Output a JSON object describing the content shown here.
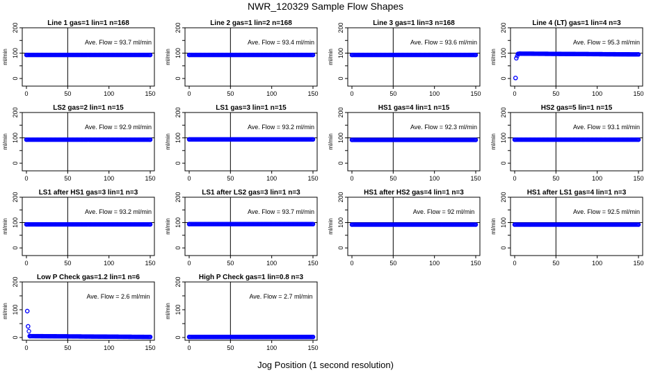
{
  "figure": {
    "title": "NWR_120329  Sample Flow Shapes",
    "xlabel": "Jog Position (1 second resolution)",
    "ylabel": "ml/min",
    "avg_prefix": "Ave. Flow = ",
    "avg_unit": "ml/min",
    "point_color": "#0000ff"
  },
  "chart_data": [
    {
      "type": "scatter",
      "title": "Line 1 gas=1 lin=1 n=168",
      "avg": "93.7",
      "xlim": [
        0,
        150
      ],
      "ylim": [
        -30,
        200
      ],
      "xticks": [
        0,
        50,
        100,
        150
      ],
      "yticks": [
        0,
        100,
        200
      ],
      "ytick_minor": [
        50,
        150
      ],
      "vline": 50,
      "hline": 100,
      "x": [
        0,
        150
      ],
      "y": [
        93,
        93
      ]
    },
    {
      "type": "scatter",
      "title": "Line 2 gas=1 lin=2 n=168",
      "avg": "93.4",
      "xlim": [
        0,
        150
      ],
      "ylim": [
        -30,
        200
      ],
      "xticks": [
        0,
        50,
        100,
        150
      ],
      "yticks": [
        0,
        100,
        200
      ],
      "ytick_minor": [
        50,
        150
      ],
      "vline": 50,
      "hline": 100,
      "x": [
        0,
        150
      ],
      "y": [
        93,
        93
      ]
    },
    {
      "type": "scatter",
      "title": "Line 3 gas=1 lin=3 n=168",
      "avg": "93.6",
      "xlim": [
        0,
        150
      ],
      "ylim": [
        -30,
        200
      ],
      "xticks": [
        0,
        50,
        100,
        150
      ],
      "yticks": [
        0,
        100,
        200
      ],
      "ytick_minor": [
        50,
        150
      ],
      "vline": 50,
      "hline": 100,
      "x": [
        0,
        150
      ],
      "y": [
        93,
        93
      ]
    },
    {
      "type": "scatter",
      "title": "Line 4 (LT) gas=1 lin=4 n=3",
      "avg": "95.3",
      "xlim": [
        0,
        150
      ],
      "ylim": [
        -30,
        200
      ],
      "xticks": [
        0,
        50,
        100,
        150
      ],
      "yticks": [
        0,
        100,
        200
      ],
      "ytick_minor": [
        50,
        150
      ],
      "vline": 50,
      "hline": 100,
      "x": [
        1,
        2,
        4,
        6,
        150
      ],
      "y": [
        2,
        80,
        97,
        98,
        95
      ]
    },
    {
      "type": "scatter",
      "title": "LS2 gas=2 lin=1 n=15",
      "avg": "92.9",
      "xlim": [
        0,
        150
      ],
      "ylim": [
        -30,
        200
      ],
      "xticks": [
        0,
        50,
        100,
        150
      ],
      "yticks": [
        0,
        100,
        200
      ],
      "ytick_minor": [
        50,
        150
      ],
      "vline": 50,
      "hline": 100,
      "x": [
        0,
        150
      ],
      "y": [
        93,
        93
      ]
    },
    {
      "type": "scatter",
      "title": "LS1 gas=3 lin=1 n=15",
      "avg": "93.2",
      "xlim": [
        0,
        150
      ],
      "ylim": [
        -30,
        200
      ],
      "xticks": [
        0,
        50,
        100,
        150
      ],
      "yticks": [
        0,
        100,
        200
      ],
      "ytick_minor": [
        50,
        150
      ],
      "vline": 50,
      "hline": 100,
      "x": [
        0,
        150
      ],
      "y": [
        94,
        94
      ]
    },
    {
      "type": "scatter",
      "title": "HS1 gas=4 lin=1 n=15",
      "avg": "92.3",
      "xlim": [
        0,
        150
      ],
      "ylim": [
        -30,
        200
      ],
      "xticks": [
        0,
        50,
        100,
        150
      ],
      "yticks": [
        0,
        100,
        200
      ],
      "ytick_minor": [
        50,
        150
      ],
      "vline": 50,
      "hline": 100,
      "x": [
        0,
        150
      ],
      "y": [
        92,
        92
      ]
    },
    {
      "type": "scatter",
      "title": "HS2 gas=5 lin=1 n=15",
      "avg": "93.1",
      "xlim": [
        0,
        150
      ],
      "ylim": [
        -30,
        200
      ],
      "xticks": [
        0,
        50,
        100,
        150
      ],
      "yticks": [
        0,
        100,
        200
      ],
      "ytick_minor": [
        50,
        150
      ],
      "vline": 50,
      "hline": 100,
      "x": [
        0,
        150
      ],
      "y": [
        93,
        93
      ]
    },
    {
      "type": "scatter",
      "title": "LS1 after HS1 gas=3 lin=1 n=3",
      "avg": "93.2",
      "xlim": [
        0,
        150
      ],
      "ylim": [
        -30,
        200
      ],
      "xticks": [
        0,
        50,
        100,
        150
      ],
      "yticks": [
        0,
        100,
        200
      ],
      "ytick_minor": [
        50,
        150
      ],
      "vline": 50,
      "hline": 100,
      "x": [
        0,
        150
      ],
      "y": [
        93,
        93
      ]
    },
    {
      "type": "scatter",
      "title": "LS1 after LS2 gas=3 lin=1 n=3",
      "avg": "93.7",
      "xlim": [
        0,
        150
      ],
      "ylim": [
        -30,
        200
      ],
      "xticks": [
        0,
        50,
        100,
        150
      ],
      "yticks": [
        0,
        100,
        200
      ],
      "ytick_minor": [
        50,
        150
      ],
      "vline": 50,
      "hline": 100,
      "x": [
        0,
        150
      ],
      "y": [
        94,
        94
      ]
    },
    {
      "type": "scatter",
      "title": "HS1 after HS2 gas=4 lin=1 n=3",
      "avg": "92",
      "xlim": [
        0,
        150
      ],
      "ylim": [
        -30,
        200
      ],
      "xticks": [
        0,
        50,
        100,
        150
      ],
      "yticks": [
        0,
        100,
        200
      ],
      "ytick_minor": [
        50,
        150
      ],
      "vline": 50,
      "hline": 100,
      "x": [
        0,
        150
      ],
      "y": [
        92,
        92
      ]
    },
    {
      "type": "scatter",
      "title": "HS1 after LS1 gas=4 lin=1 n=3",
      "avg": "92.5",
      "xlim": [
        0,
        150
      ],
      "ylim": [
        -30,
        200
      ],
      "xticks": [
        0,
        50,
        100,
        150
      ],
      "yticks": [
        0,
        100,
        200
      ],
      "ytick_minor": [
        50,
        150
      ],
      "vline": 50,
      "hline": 100,
      "x": [
        0,
        150
      ],
      "y": [
        92,
        92
      ]
    },
    {
      "type": "scatter",
      "title": "Low P Check gas=1.2 lin=1 n=6",
      "avg": "2.6",
      "xlim": [
        0,
        150
      ],
      "ylim": [
        -10,
        200
      ],
      "xticks": [
        0,
        50,
        100,
        150
      ],
      "yticks": [
        0,
        100,
        200
      ],
      "ytick_minor": [
        50,
        150
      ],
      "vline": 50,
      "hline": null,
      "x": [
        1,
        2,
        4,
        150
      ],
      "y": [
        95,
        40,
        5,
        2
      ]
    },
    {
      "type": "scatter",
      "title": "High P Check gas=1 lin=0.8 n=3",
      "avg": "2.7",
      "xlim": [
        0,
        150
      ],
      "ylim": [
        -10,
        200
      ],
      "xticks": [
        0,
        50,
        100,
        150
      ],
      "yticks": [
        0,
        100,
        200
      ],
      "ytick_minor": [
        50,
        150
      ],
      "vline": 50,
      "hline": null,
      "x": [
        0,
        150
      ],
      "y": [
        2,
        2
      ]
    }
  ]
}
